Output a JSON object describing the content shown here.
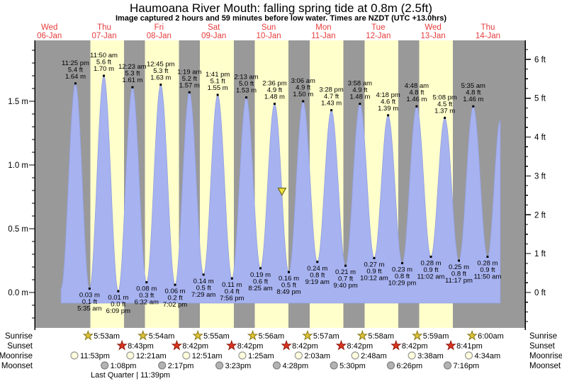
{
  "title": "Haumoana River Mouth: falling  spring tide at 0.8m (2.5ft)",
  "subtitle": "Image captured 2 hours and 59 minutes before low water. Times are NZDT (UTC +13.0hrs)",
  "colors": {
    "night_band": "#999999",
    "day_band": "#ffffcc",
    "tide_fill": "#a7b2f0",
    "tide_edge": "#93a1e0",
    "day_label_red": "#e83b3b",
    "axis": "#000000",
    "event_dot": "#000000",
    "sunrise_star_fill": "#ddc235",
    "sunrise_star_edge": "#8a7a1a",
    "sunset_star_fill": "#e0331f",
    "sunset_star_edge": "#8c1a0c",
    "moonrise_fill": "#ffffdd",
    "moonrise_edge": "#999999",
    "moonset_fill": "#b3b3b3",
    "moonset_edge": "#808080",
    "marker_fill": "#f0e23c",
    "marker_edge": "#6e6a1e"
  },
  "day_labels": [
    {
      "name": "Wed",
      "date": "06-Jan",
      "noon_t": 12
    },
    {
      "name": "Thu",
      "date": "07-Jan",
      "noon_t": 36
    },
    {
      "name": "Fri",
      "date": "08-Jan",
      "noon_t": 60
    },
    {
      "name": "Sat",
      "date": "09-Jan",
      "noon_t": 84
    },
    {
      "name": "Sun",
      "date": "10-Jan",
      "noon_t": 108
    },
    {
      "name": "Mon",
      "date": "11-Jan",
      "noon_t": 132
    },
    {
      "name": "Tue",
      "date": "12-Jan",
      "noon_t": 156
    },
    {
      "name": "Wed",
      "date": "13-Jan",
      "noon_t": 180
    },
    {
      "name": "Thu",
      "date": "14-Jan",
      "noon_t": 204
    }
  ],
  "chart_data": {
    "type": "area",
    "title": "Haumoana River Mouth tide curve",
    "time_axis_note": "t = hours since 00:00 Wed 06-Jan",
    "ylabel_left": "m",
    "ylabel_right": "ft",
    "ylim_m": [
      -0.28,
      1.98
    ],
    "grid": false,
    "left_ticks": [
      {
        "v": 0.0,
        "label": "0.0 m"
      },
      {
        "v": 0.5,
        "label": "0.5 m"
      },
      {
        "v": 1.0,
        "label": "1.0 m"
      },
      {
        "v": 1.5,
        "label": "1.5 m"
      }
    ],
    "right_ticks": [
      {
        "v": 0,
        "label": "0 ft"
      },
      {
        "v": 1,
        "label": "1 ft"
      },
      {
        "v": 2,
        "label": "2 ft"
      },
      {
        "v": 3,
        "label": "3 ft"
      },
      {
        "v": 4,
        "label": "4 ft"
      },
      {
        "v": 5,
        "label": "5 ft"
      },
      {
        "v": 6,
        "label": "6 ft"
      }
    ],
    "high_tides": [
      {
        "t": 23.417,
        "m": 1.64,
        "m_label": "1.64 m",
        "ft_label": "5.4 ft",
        "time": "11:25 pm"
      },
      {
        "t": 35.833,
        "m": 1.7,
        "m_label": "1.70 m",
        "ft_label": "5.6 ft",
        "time": "11:50 am"
      },
      {
        "t": 48.383,
        "m": 1.61,
        "m_label": "1.61 m",
        "ft_label": "5.3 ft",
        "time": "12:23 am"
      },
      {
        "t": 60.75,
        "m": 1.63,
        "m_label": "1.63 m",
        "ft_label": "5.3 ft",
        "time": "12:45 pm"
      },
      {
        "t": 73.317,
        "m": 1.57,
        "m_label": "1.57 m",
        "ft_label": "5.2 ft",
        "time": "1:19 am"
      },
      {
        "t": 85.683,
        "m": 1.55,
        "m_label": "1.55 m",
        "ft_label": "5.1 ft",
        "time": "1:41 pm"
      },
      {
        "t": 98.217,
        "m": 1.53,
        "m_label": "1.53 m",
        "ft_label": "5.0 ft",
        "time": "2:13 am"
      },
      {
        "t": 110.6,
        "m": 1.48,
        "m_label": "1.48 m",
        "ft_label": "4.9 ft",
        "time": "2:36 pm"
      },
      {
        "t": 123.1,
        "m": 1.5,
        "m_label": "1.50 m",
        "ft_label": "4.9 ft",
        "time": "3:06 am"
      },
      {
        "t": 135.467,
        "m": 1.43,
        "m_label": "1.43 m",
        "ft_label": "4.7 ft",
        "time": "3:28 pm"
      },
      {
        "t": 147.967,
        "m": 1.48,
        "m_label": "1.48 m",
        "ft_label": "4.9 ft",
        "time": "3:58 am"
      },
      {
        "t": 160.3,
        "m": 1.39,
        "m_label": "1.39 m",
        "ft_label": "4.6 ft",
        "time": "4:18 pm"
      },
      {
        "t": 172.8,
        "m": 1.46,
        "m_label": "1.46 m",
        "ft_label": "4.8 ft",
        "time": "4:48 am"
      },
      {
        "t": 185.133,
        "m": 1.37,
        "m_label": "1.37 m",
        "ft_label": "4.5 ft",
        "time": "5:08 pm"
      },
      {
        "t": 197.583,
        "m": 1.46,
        "m_label": "1.46 m",
        "ft_label": "4.8 ft",
        "time": "5:35 am"
      }
    ],
    "low_tides": [
      {
        "t": 29.583,
        "m": 0.03,
        "m_label": "0.03 m",
        "ft_label": "0.1 ft",
        "time": "5:35 am"
      },
      {
        "t": 42.15,
        "m": 0.01,
        "m_label": "0.01 m",
        "ft_label": "0.0 ft",
        "time": "6:09 pm"
      },
      {
        "t": 54.533,
        "m": 0.08,
        "m_label": "0.08 m",
        "ft_label": "0.3 ft",
        "time": "6:32 am"
      },
      {
        "t": 67.033,
        "m": 0.06,
        "m_label": "0.06 m",
        "ft_label": "0.2 ft",
        "time": "7:02 pm"
      },
      {
        "t": 79.483,
        "m": 0.14,
        "m_label": "0.14 m",
        "ft_label": "0.5 ft",
        "time": "7:29 am"
      },
      {
        "t": 91.933,
        "m": 0.11,
        "m_label": "0.11 m",
        "ft_label": "0.4 ft",
        "time": "7:56 pm"
      },
      {
        "t": 104.417,
        "m": 0.19,
        "m_label": "0.19 m",
        "ft_label": "0.6 ft",
        "time": "8:25 am"
      },
      {
        "t": 116.817,
        "m": 0.16,
        "m_label": "0.16 m",
        "ft_label": "0.5 ft",
        "time": "8:49 pm"
      },
      {
        "t": 129.317,
        "m": 0.24,
        "m_label": "0.24 m",
        "ft_label": "0.8 ft",
        "time": "9:19 am"
      },
      {
        "t": 141.667,
        "m": 0.21,
        "m_label": "0.21 m",
        "ft_label": "0.7 ft",
        "time": "9:40 pm"
      },
      {
        "t": 154.2,
        "m": 0.27,
        "m_label": "0.27 m",
        "ft_label": "0.9 ft",
        "time": "10:12 am"
      },
      {
        "t": 166.483,
        "m": 0.23,
        "m_label": "0.23 m",
        "ft_label": "0.8 ft",
        "time": "10:29 pm"
      },
      {
        "t": 179.033,
        "m": 0.28,
        "m_label": "0.28 m",
        "ft_label": "0.9 ft",
        "time": "11:02 am"
      },
      {
        "t": 191.283,
        "m": 0.25,
        "m_label": "0.25 m",
        "ft_label": "0.8 ft",
        "time": "11:17 pm"
      },
      {
        "t": 203.833,
        "m": 0.28,
        "m_label": "0.28 m",
        "ft_label": "0.9 ft",
        "time": "11:50 am"
      }
    ],
    "curve_lead": {
      "t": 17.1,
      "m": 0.03
    },
    "curve_tail": {
      "t": 209.4,
      "m": 1.35
    },
    "daylight_bands": [
      {
        "start_t": 29.883,
        "end_t": 44.717
      },
      {
        "start_t": 53.9,
        "end_t": 68.7
      },
      {
        "start_t": 77.917,
        "end_t": 92.7
      },
      {
        "start_t": 101.933,
        "end_t": 116.7
      },
      {
        "start_t": 125.95,
        "end_t": 140.7
      },
      {
        "start_t": 149.967,
        "end_t": 164.7
      },
      {
        "start_t": 173.983,
        "end_t": 188.683
      }
    ],
    "current_marker": {
      "t": 113.83,
      "m": 0.78,
      "note": "falling spring tide at 0.8m (2.5ft)"
    }
  },
  "astro": {
    "rows": [
      {
        "key": "sunrise",
        "label": "Sunrise",
        "icon": "sunrise-star",
        "events": [
          {
            "t": 29.883,
            "label": "5:53am"
          },
          {
            "t": 53.9,
            "label": "5:54am"
          },
          {
            "t": 77.917,
            "label": "5:55am"
          },
          {
            "t": 101.933,
            "label": "5:56am"
          },
          {
            "t": 125.95,
            "label": "5:57am"
          },
          {
            "t": 149.967,
            "label": "5:58am"
          },
          {
            "t": 173.983,
            "label": "5:59am"
          },
          {
            "t": 198.0,
            "label": "6:00am"
          }
        ]
      },
      {
        "key": "sunset",
        "label": "Sunset",
        "icon": "sunset-star",
        "events": [
          {
            "t": 44.717,
            "label": "8:43pm"
          },
          {
            "t": 68.7,
            "label": "8:42pm"
          },
          {
            "t": 92.7,
            "label": "8:42pm"
          },
          {
            "t": 116.7,
            "label": "8:42pm"
          },
          {
            "t": 140.7,
            "label": "8:42pm"
          },
          {
            "t": 164.7,
            "label": "8:42pm"
          },
          {
            "t": 188.683,
            "label": "8:41pm"
          }
        ]
      },
      {
        "key": "moonrise",
        "label": "Moonrise",
        "icon": "moonrise-circle",
        "events": [
          {
            "t": 23.883,
            "label": "11:53pm"
          },
          {
            "t": 48.35,
            "label": "12:21am"
          },
          {
            "t": 72.85,
            "label": "12:51am"
          },
          {
            "t": 97.417,
            "label": "1:25am"
          },
          {
            "t": 122.05,
            "label": "2:03am"
          },
          {
            "t": 146.8,
            "label": "2:48am"
          },
          {
            "t": 171.633,
            "label": "3:38am"
          },
          {
            "t": 196.567,
            "label": "4:34am"
          }
        ]
      },
      {
        "key": "moonset",
        "label": "Moonset",
        "icon": "moonset-circle",
        "events": [
          {
            "t": 37.133,
            "label": "1:08pm"
          },
          {
            "t": 62.283,
            "label": "2:17pm"
          },
          {
            "t": 87.383,
            "label": "3:23pm"
          },
          {
            "t": 112.467,
            "label": "4:28pm"
          },
          {
            "t": 137.5,
            "label": "5:30pm"
          },
          {
            "t": 162.433,
            "label": "6:26pm"
          },
          {
            "t": 187.267,
            "label": "7:16pm"
          }
        ]
      }
    ],
    "moon_phase": "Last Quarter | 11:39pm"
  }
}
